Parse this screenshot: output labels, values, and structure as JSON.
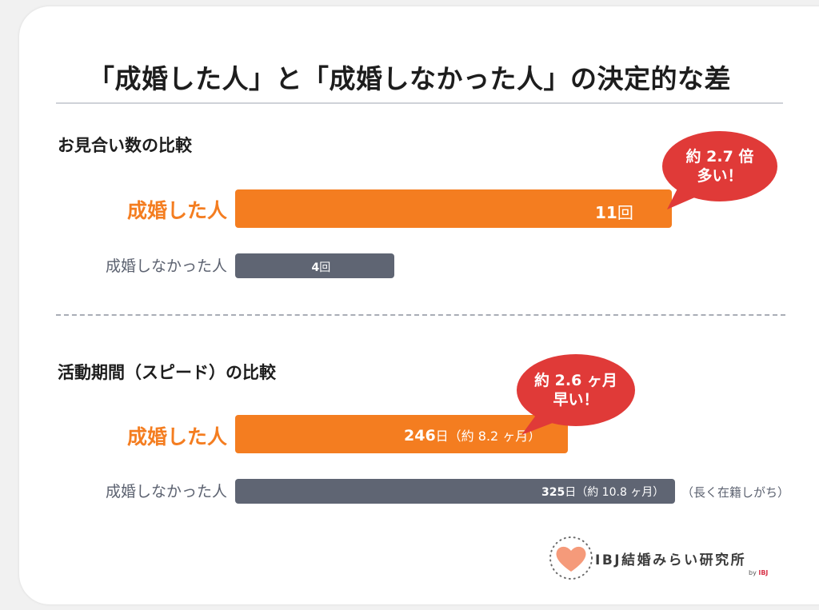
{
  "title": "「成婚した人」と「成婚しなかった人」の決定的な差",
  "colors": {
    "married": "#f47d20",
    "unmarried": "#5f6573",
    "callout": "#e03a38"
  },
  "chart_data": [
    {
      "type": "bar",
      "orientation": "horizontal",
      "title": "お見合い数の比較",
      "categories": [
        "成婚した人",
        "成婚しなかった人"
      ],
      "values": [
        11,
        4
      ],
      "unit": "回",
      "value_labels": [
        {
          "num": "11",
          "unit": "回"
        },
        {
          "num": "4",
          "unit": "回"
        }
      ],
      "notes": [
        "",
        ""
      ],
      "callout": {
        "line1": "約 2.7 倍",
        "line2": "多い！"
      }
    },
    {
      "type": "bar",
      "orientation": "horizontal",
      "title": "活動期間（スピード）の比較",
      "categories": [
        "成婚した人",
        "成婚しなかった人"
      ],
      "values": [
        246,
        325
      ],
      "unit": "日",
      "value_labels": [
        {
          "num": "246",
          "unit": "日（約 8.2 ヶ月）"
        },
        {
          "num": "325",
          "unit": "日（約 10.8 ヶ月）"
        }
      ],
      "notes": [
        "",
        "（長く在籍しがち）"
      ],
      "callout": {
        "line1": "約 2.6 ヶ月",
        "line2": "早い！"
      }
    }
  ],
  "logo": {
    "text": "IBJ結婚みらい研究所",
    "by": "by",
    "brand": "IBJ",
    "icon": "heart-icon"
  }
}
